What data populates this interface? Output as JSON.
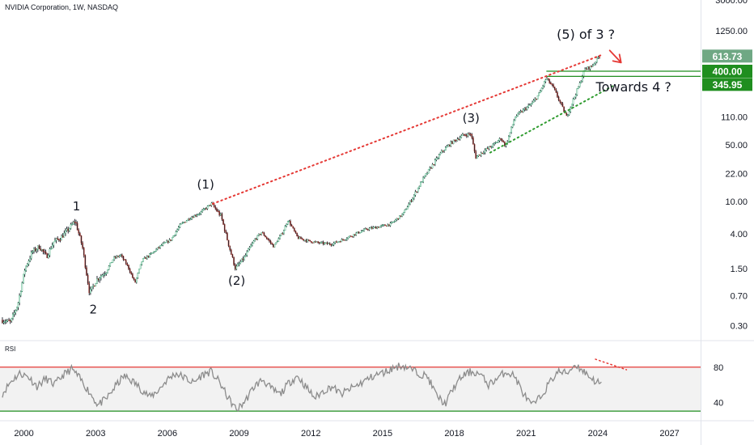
{
  "header": {
    "title": "NVIDIA Corporation, 1W, NASDAQ"
  },
  "rsi_panel": {
    "title": "RSI"
  },
  "colors": {
    "candles": "#131722",
    "resistance": "#e53935",
    "support": "#2e9b2e",
    "badge_last": "#6fa884",
    "badge_level": "#1f8e1f",
    "level_line": "#1f8e1f",
    "rsi_line": "#8c8c8c",
    "rsi_upper": "#e53935",
    "rsi_lower": "#1f8e1f",
    "rsi_band": "#f2f2f2"
  },
  "chart_data": [
    {
      "type": "candlestick",
      "title": "NVIDIA Corporation, 1W, NASDAQ",
      "scale": "log",
      "ylim": [
        0.2,
        3000
      ],
      "xlim": [
        1999.0,
        2028.3
      ],
      "x_ticks": [
        "2000",
        "2003",
        "2006",
        "2009",
        "2012",
        "2015",
        "2018",
        "2021",
        "2024",
        "2027"
      ],
      "y_ticks": [
        "3000.00",
        "1250.00",
        "400.00",
        "110.00",
        "50.00",
        "22.00",
        "10.00",
        "4.00",
        "1.50",
        "0.70",
        "0.30"
      ],
      "price_path": [
        [
          1999.1,
          0.35
        ],
        [
          1999.5,
          0.33
        ],
        [
          1999.8,
          0.55
        ],
        [
          2000.1,
          1.5
        ],
        [
          2000.4,
          2.4
        ],
        [
          2000.7,
          2.8
        ],
        [
          2001.0,
          2.1
        ],
        [
          2001.3,
          3.2
        ],
        [
          2001.6,
          3.6
        ],
        [
          2001.9,
          4.5
        ],
        [
          2002.2,
          5.8
        ],
        [
          2002.5,
          2.8
        ],
        [
          2002.8,
          0.75
        ],
        [
          2003.1,
          1.1
        ],
        [
          2003.5,
          1.4
        ],
        [
          2003.8,
          2.0
        ],
        [
          2004.1,
          2.2
        ],
        [
          2004.4,
          1.6
        ],
        [
          2004.7,
          1.0
        ],
        [
          2005.0,
          1.9
        ],
        [
          2005.4,
          2.3
        ],
        [
          2005.8,
          2.9
        ],
        [
          2006.2,
          3.4
        ],
        [
          2006.6,
          5.2
        ],
        [
          2007.0,
          6.3
        ],
        [
          2007.4,
          7.2
        ],
        [
          2007.9,
          9.4
        ],
        [
          2008.3,
          6.6
        ],
        [
          2008.7,
          2.4
        ],
        [
          2008.9,
          1.5
        ],
        [
          2009.3,
          2.1
        ],
        [
          2009.7,
          3.4
        ],
        [
          2010.0,
          4.2
        ],
        [
          2010.5,
          2.8
        ],
        [
          2010.9,
          4.3
        ],
        [
          2011.1,
          6.0
        ],
        [
          2011.5,
          3.6
        ],
        [
          2011.9,
          3.3
        ],
        [
          2012.4,
          3.1
        ],
        [
          2012.9,
          3.0
        ],
        [
          2013.4,
          3.4
        ],
        [
          2013.9,
          4.0
        ],
        [
          2014.4,
          4.6
        ],
        [
          2014.9,
          4.9
        ],
        [
          2015.4,
          5.3
        ],
        [
          2015.9,
          7.0
        ],
        [
          2016.3,
          11.0
        ],
        [
          2016.7,
          18.0
        ],
        [
          2017.1,
          27.0
        ],
        [
          2017.5,
          40.0
        ],
        [
          2017.9,
          52.0
        ],
        [
          2018.4,
          65.0
        ],
        [
          2018.75,
          68.0
        ],
        [
          2018.95,
          35.0
        ],
        [
          2019.3,
          42.0
        ],
        [
          2019.7,
          50.0
        ],
        [
          2020.0,
          60.0
        ],
        [
          2020.2,
          48.0
        ],
        [
          2020.6,
          110.0
        ],
        [
          2020.9,
          130.0
        ],
        [
          2021.3,
          160.0
        ],
        [
          2021.6,
          210.0
        ],
        [
          2021.9,
          330.0
        ],
        [
          2022.2,
          250.0
        ],
        [
          2022.5,
          160.0
        ],
        [
          2022.75,
          110.0
        ],
        [
          2023.0,
          170.0
        ],
        [
          2023.3,
          280.0
        ],
        [
          2023.5,
          420.0
        ],
        [
          2023.8,
          460.0
        ],
        [
          2024.0,
          550.0
        ],
        [
          2024.1,
          613.73
        ]
      ],
      "last_price": "613.73",
      "horizontal_levels": [
        {
          "value": 400.0,
          "label": "400.00"
        },
        {
          "value": 345.95,
          "label": "345.95"
        }
      ],
      "trendlines": [
        {
          "name": "resistance",
          "style": "dotted",
          "from": [
            2007.9,
            9.4
          ],
          "to": [
            2024.2,
            640.0
          ]
        },
        {
          "name": "support",
          "style": "dotted",
          "from": [
            2019.5,
            40.0
          ],
          "to": [
            2024.7,
            270.0
          ]
        }
      ],
      "annotations": [
        {
          "text": "1",
          "x": 2002.2,
          "y": 7.8
        },
        {
          "text": "2",
          "x": 2002.9,
          "y": 0.42
        },
        {
          "text": "(1)",
          "x": 2007.6,
          "y": 14.5
        },
        {
          "text": "(2)",
          "x": 2008.9,
          "y": 0.95
        },
        {
          "text": "(3)",
          "x": 2018.7,
          "y": 95.0
        },
        {
          "text": "(5) of 3 ?",
          "x": 2023.5,
          "y": 1000.0
        },
        {
          "text": "Towards 4 ?",
          "x": 2025.5,
          "y": 225.0
        }
      ]
    },
    {
      "type": "line",
      "title": "RSI",
      "ylim": [
        20,
        100
      ],
      "y_ticks": [
        "80",
        "40"
      ],
      "upper_band": 80,
      "lower_band": 30,
      "values": [
        50,
        64,
        73,
        69,
        58,
        67,
        60,
        71,
        78,
        66,
        52,
        37,
        44,
        58,
        70,
        64,
        55,
        46,
        54,
        66,
        73,
        68,
        62,
        71,
        75,
        63,
        45,
        31,
        42,
        58,
        66,
        55,
        49,
        62,
        70,
        57,
        45,
        53,
        58,
        49,
        55,
        60,
        66,
        71,
        74,
        79,
        82,
        78,
        73,
        69,
        48,
        38,
        57,
        70,
        75,
        72,
        60,
        67,
        75,
        70,
        50,
        36,
        46,
        62,
        75,
        73,
        83,
        75,
        66,
        60
      ],
      "divergence_line": {
        "from": [
          2023.9,
          89
        ],
        "to": [
          2025.2,
          77
        ]
      }
    }
  ]
}
